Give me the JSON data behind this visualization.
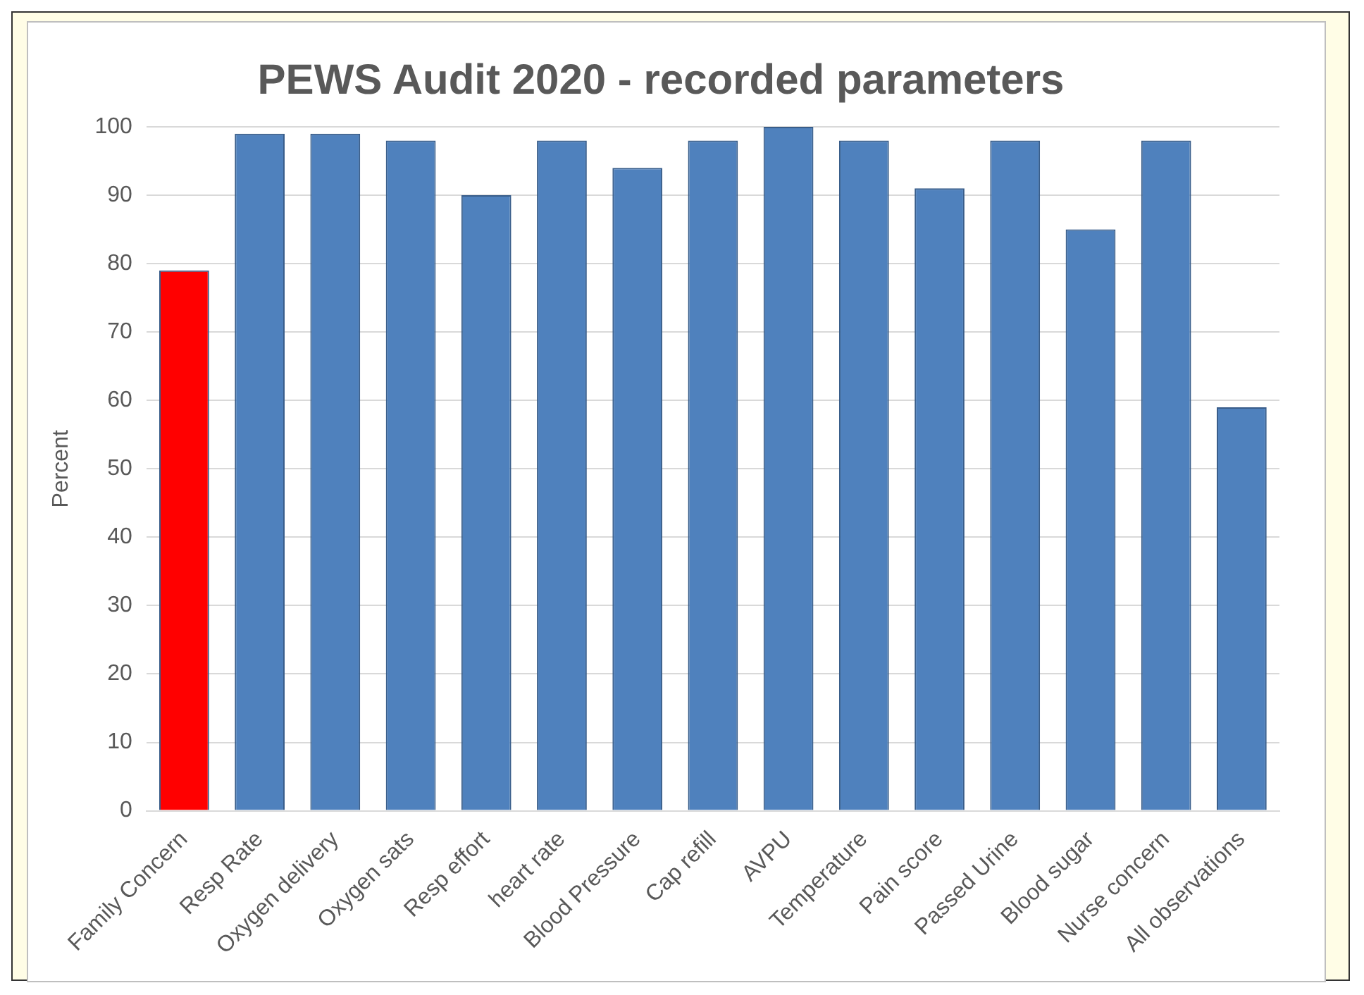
{
  "chart_data": {
    "type": "bar",
    "title": "PEWS Audit 2020 - recorded parameters",
    "ylabel": "Percent",
    "categories": [
      "Family Concern",
      "Resp Rate",
      "Oxygen delivery",
      "Oxygen sats",
      "Resp effort",
      "heart rate",
      "Blood Pressure",
      "Cap refill",
      "AVPU",
      "Temperature",
      "Pain score",
      "Passed Urine",
      "Blood sugar",
      "Nurse concern",
      "All observations"
    ],
    "values": [
      79,
      99,
      99,
      98,
      90,
      98,
      94,
      98,
      100,
      98,
      91,
      98,
      85,
      98,
      59
    ],
    "colors": [
      "#ff0000",
      "#4f81bd",
      "#4f81bd",
      "#4f81bd",
      "#4f81bd",
      "#4f81bd",
      "#4f81bd",
      "#4f81bd",
      "#4f81bd",
      "#4f81bd",
      "#4f81bd",
      "#4f81bd",
      "#4f81bd",
      "#4f81bd",
      "#4f81bd"
    ],
    "ylim": [
      0,
      100
    ],
    "yticks": [
      0,
      10,
      20,
      30,
      40,
      50,
      60,
      70,
      80,
      90,
      100
    ],
    "grid": "y",
    "legend": false
  }
}
